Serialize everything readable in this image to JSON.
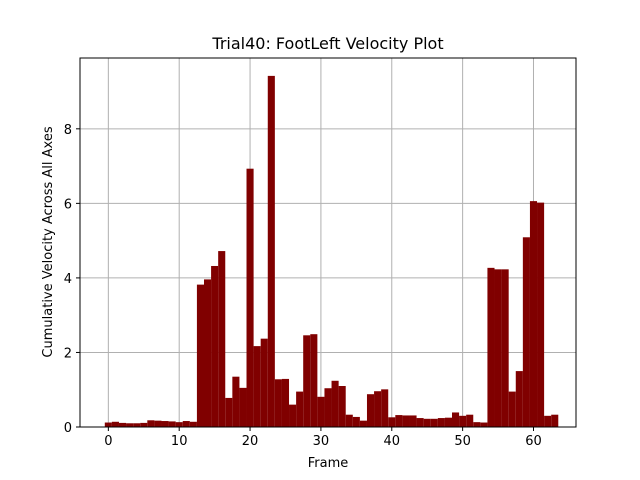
{
  "chart_data": {
    "type": "bar",
    "title": "Trial40: FootLeft Velocity Plot",
    "xlabel": "Frame",
    "ylabel": "Cumulative Velocity Across All Axes",
    "x": [
      0,
      1,
      2,
      3,
      4,
      5,
      6,
      7,
      8,
      9,
      10,
      11,
      12,
      13,
      14,
      15,
      16,
      17,
      18,
      19,
      20,
      21,
      22,
      23,
      24,
      25,
      26,
      27,
      28,
      29,
      30,
      31,
      32,
      33,
      34,
      35,
      36,
      37,
      38,
      39,
      40,
      41,
      42,
      43,
      44,
      45,
      46,
      47,
      48,
      49,
      50,
      51,
      52,
      53,
      54,
      55,
      56,
      57,
      58,
      59,
      60,
      61,
      62,
      63
    ],
    "values": [
      0.12,
      0.14,
      0.11,
      0.1,
      0.1,
      0.11,
      0.18,
      0.17,
      0.16,
      0.15,
      0.13,
      0.16,
      0.14,
      3.82,
      3.96,
      4.32,
      4.72,
      0.78,
      1.35,
      1.05,
      6.93,
      2.17,
      2.37,
      9.42,
      1.28,
      1.29,
      0.6,
      0.95,
      2.46,
      2.49,
      0.81,
      1.04,
      1.24,
      1.1,
      0.33,
      0.27,
      0.17,
      0.88,
      0.96,
      1.01,
      0.26,
      0.32,
      0.31,
      0.31,
      0.24,
      0.22,
      0.22,
      0.24,
      0.25,
      0.39,
      0.3,
      0.33,
      0.13,
      0.12,
      4.27,
      4.23,
      4.23,
      0.95,
      1.5,
      5.09,
      6.06,
      6.02,
      0.3,
      0.33
    ],
    "bar_color": "#800000",
    "xlim": [
      -4,
      66
    ],
    "ylim": [
      0,
      9.9
    ],
    "xticks": [
      0,
      10,
      20,
      30,
      40,
      50,
      60
    ],
    "xtick_labels": [
      "0",
      "10",
      "20",
      "30",
      "40",
      "50",
      "60"
    ],
    "yticks": [
      0,
      2,
      4,
      6,
      8
    ],
    "ytick_labels": [
      "0",
      "2",
      "4",
      "6",
      "8"
    ],
    "grid": true,
    "grid_color": "#b0b0b0"
  }
}
